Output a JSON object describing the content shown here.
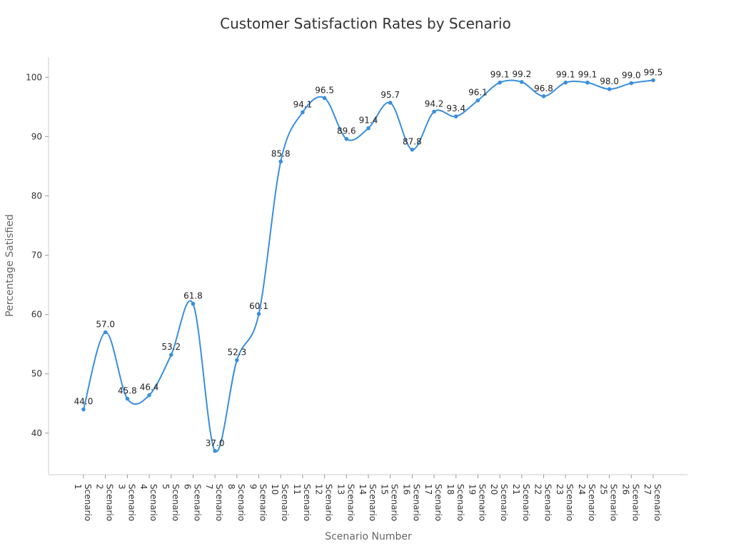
{
  "chart_data": {
    "type": "line",
    "title": "Customer Satisfaction Rates by Scenario",
    "xlabel": "Scenario Number",
    "ylabel": "Percentage Satisfied",
    "categories": [
      "Scenario 1",
      "Scenario 2",
      "Scenario 3",
      "Scenario 4",
      "Scenario 5",
      "Scenario 6",
      "Scenario 7",
      "Scenario 8",
      "Scenario 9",
      "Scenario 10",
      "Scenario 11",
      "Scenario 12",
      "Scenario 13",
      "Scenario 14",
      "Scenario 15",
      "Scenario 16",
      "Scenario 17",
      "Scenario 18",
      "Scenario 19",
      "Scenario 20",
      "Scenario 21",
      "Scenario 22",
      "Scenario 23",
      "Scenario 24",
      "Scenario 25",
      "Scenario 26",
      "Scenario 27"
    ],
    "values": [
      44.0,
      57.0,
      45.8,
      46.4,
      53.2,
      61.8,
      37.0,
      52.3,
      60.1,
      85.8,
      94.1,
      96.5,
      89.6,
      91.4,
      95.7,
      87.8,
      94.2,
      93.4,
      96.1,
      99.1,
      99.2,
      96.8,
      99.1,
      99.1,
      98.0,
      99.0,
      99.5
    ],
    "data_labels": [
      "44.0",
      "57.0",
      "45.8",
      "46.4",
      "53.2",
      "61.8",
      "37.0",
      "52.3",
      "60.1",
      "85.8",
      "94.1",
      "96.5",
      "89.6",
      "91.4",
      "95.7",
      "87.8",
      "94.2",
      "93.4",
      "96.1",
      "99.1",
      "99.2",
      "96.8",
      "99.1",
      "99.1",
      "98.0",
      "99.0",
      "99.5"
    ],
    "yticks": [
      40,
      50,
      60,
      70,
      80,
      90,
      100
    ],
    "ytick_labels": [
      "40",
      "50",
      "60",
      "70",
      "80",
      "90",
      "100"
    ],
    "ylim": [
      33,
      103.4
    ],
    "smooth": true,
    "grid": false,
    "line_color": "#3a8fdd",
    "text_color": "#333333",
    "axis_color": "#cccccc"
  }
}
